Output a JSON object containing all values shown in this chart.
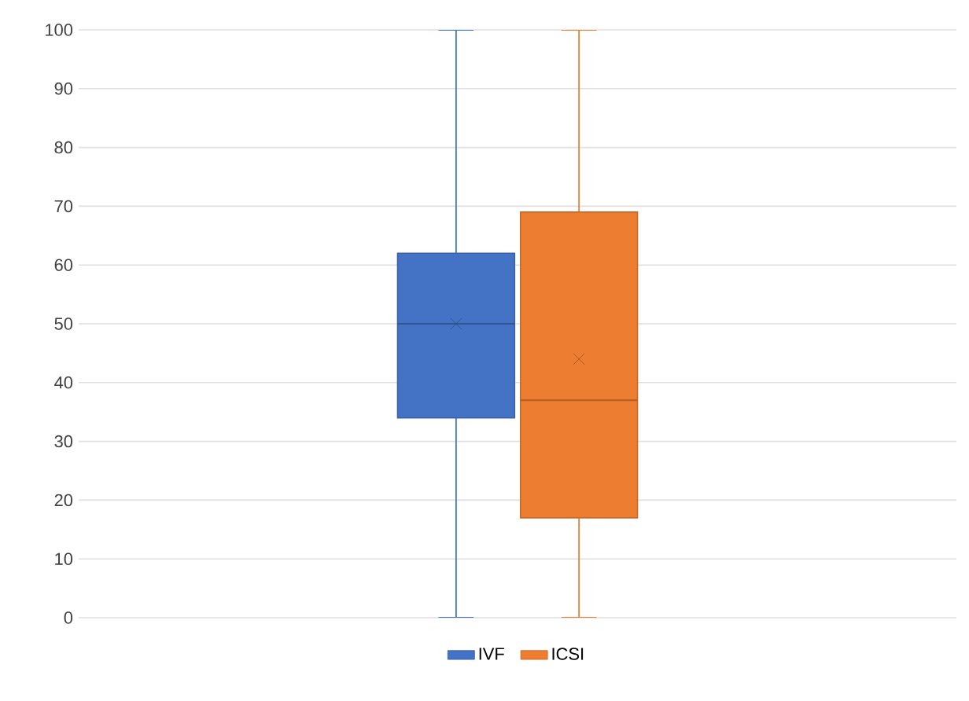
{
  "chart_data": {
    "type": "box",
    "categories": [
      null
    ],
    "series": [
      {
        "name": "IVF",
        "color": "#4472c4",
        "boxes": [
          {
            "low": 0,
            "q1": 34,
            "median": 50,
            "q3": 62,
            "high": 100,
            "mean": 50
          }
        ]
      },
      {
        "name": "ICSI",
        "color": "#ed7d31",
        "boxes": [
          {
            "low": 0,
            "q1": 17,
            "median": 37,
            "q3": 69,
            "high": 100,
            "mean": 44
          }
        ]
      }
    ],
    "ylim": [
      0,
      100
    ],
    "yticks": [
      0,
      10,
      20,
      30,
      40,
      50,
      60,
      70,
      80,
      90,
      100
    ],
    "grid": "y",
    "legend": "bottom"
  }
}
